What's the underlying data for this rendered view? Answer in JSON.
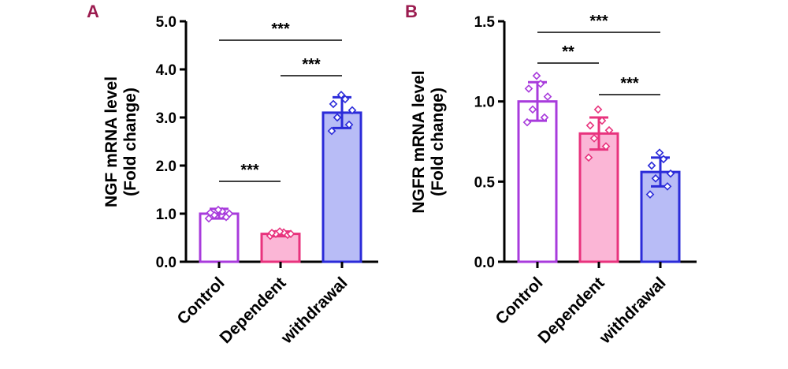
{
  "chart_data": [
    {
      "type": "bar",
      "panel_label": "A",
      "ylabel_line1": "NGF mRNA level",
      "ylabel_line2": "(Fold change)",
      "ylim": [
        0,
        5
      ],
      "yticks": [
        "0.0",
        "1.0",
        "2.0",
        "3.0",
        "4.0",
        "5.0"
      ],
      "grid": false,
      "categories": [
        "Control",
        "Dependent",
        "withdrawal"
      ],
      "values": [
        1.0,
        0.58,
        3.1
      ],
      "error": [
        0.1,
        0.05,
        0.32
      ],
      "points": [
        [
          0.9,
          0.93,
          0.97,
          1.0,
          1.02,
          1.05,
          1.08
        ],
        [
          0.54,
          0.56,
          0.58,
          0.58,
          0.6,
          0.61,
          0.63
        ],
        [
          2.72,
          2.85,
          3.0,
          3.15,
          3.28,
          3.38,
          3.47
        ]
      ],
      "significance": [
        {
          "from": 0,
          "to": 1,
          "label": "***"
        },
        {
          "from": 1,
          "to": 2,
          "label": "***"
        },
        {
          "from": 0,
          "to": 2,
          "label": "***"
        }
      ]
    },
    {
      "type": "bar",
      "panel_label": "B",
      "ylabel_line1": "NGFR mRNA level",
      "ylabel_line2": "(Fold change)",
      "ylim": [
        0,
        1.5
      ],
      "yticks": [
        "0.0",
        "0.5",
        "1.0",
        "1.5"
      ],
      "grid": false,
      "categories": [
        "Control",
        "Dependent",
        "withdrawal"
      ],
      "values": [
        1.0,
        0.8,
        0.56
      ],
      "error": [
        0.12,
        0.1,
        0.09
      ],
      "points": [
        [
          0.87,
          0.9,
          0.95,
          1.03,
          1.08,
          1.11,
          1.16
        ],
        [
          0.65,
          0.72,
          0.77,
          0.82,
          0.85,
          0.88,
          0.95
        ],
        [
          0.42,
          0.47,
          0.52,
          0.55,
          0.6,
          0.64,
          0.68
        ]
      ],
      "significance": [
        {
          "from": 0,
          "to": 1,
          "label": "**"
        },
        {
          "from": 1,
          "to": 2,
          "label": "***"
        },
        {
          "from": 0,
          "to": 2,
          "label": "***"
        }
      ]
    }
  ],
  "colors": {
    "axis": "#000000",
    "panel_label": "#9b1b4f",
    "bar_fill": [
      "#ffffff",
      "#fbb6d6",
      "#b8bcf6"
    ],
    "bar_stroke": [
      "#a83bdc",
      "#e8337d",
      "#2b2bd9"
    ]
  }
}
